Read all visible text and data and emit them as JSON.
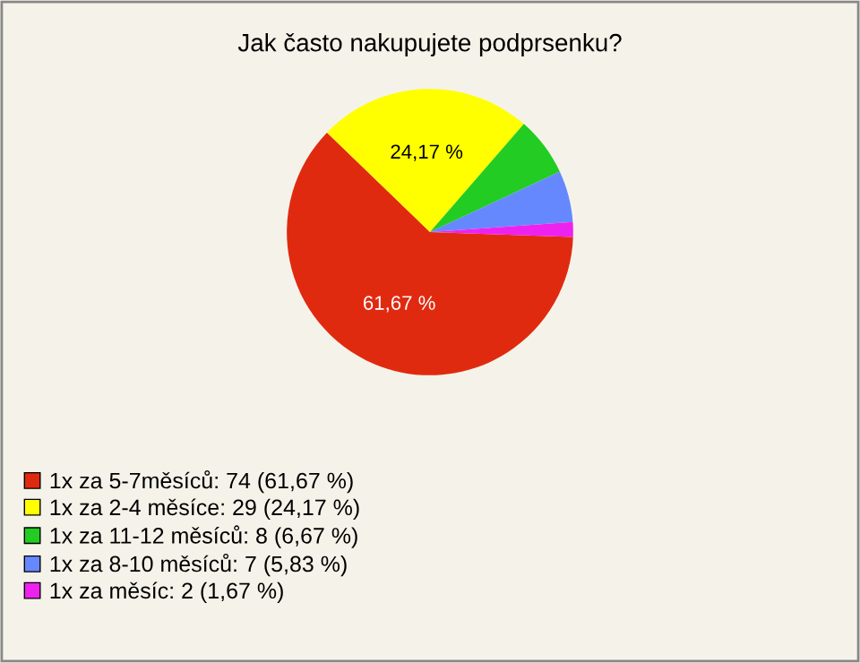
{
  "chart_data": {
    "type": "pie",
    "title": "Jak často nakupujete podprsenku?",
    "categories": [
      "1x za 5-7měsíců: 74 (61,67 %)",
      "1x za 2-4 měsíce: 29 (24,17 %)",
      "1x za 11-12 měsíců: 8 (6,67 %)",
      "1x za 8-10 měsíců: 7 (5,83 %)",
      "1x za měsíc: 2 (1,67 %)"
    ],
    "values": [
      61.67,
      24.17,
      6.67,
      5.83,
      1.67
    ],
    "colors": [
      "#e02a10",
      "#ffff00",
      "#22cc22",
      "#6688ff",
      "#ee22ee"
    ],
    "value_labels": [
      "61,67 %",
      "24,17 %",
      null,
      null,
      null
    ],
    "legend": "bottom left"
  }
}
